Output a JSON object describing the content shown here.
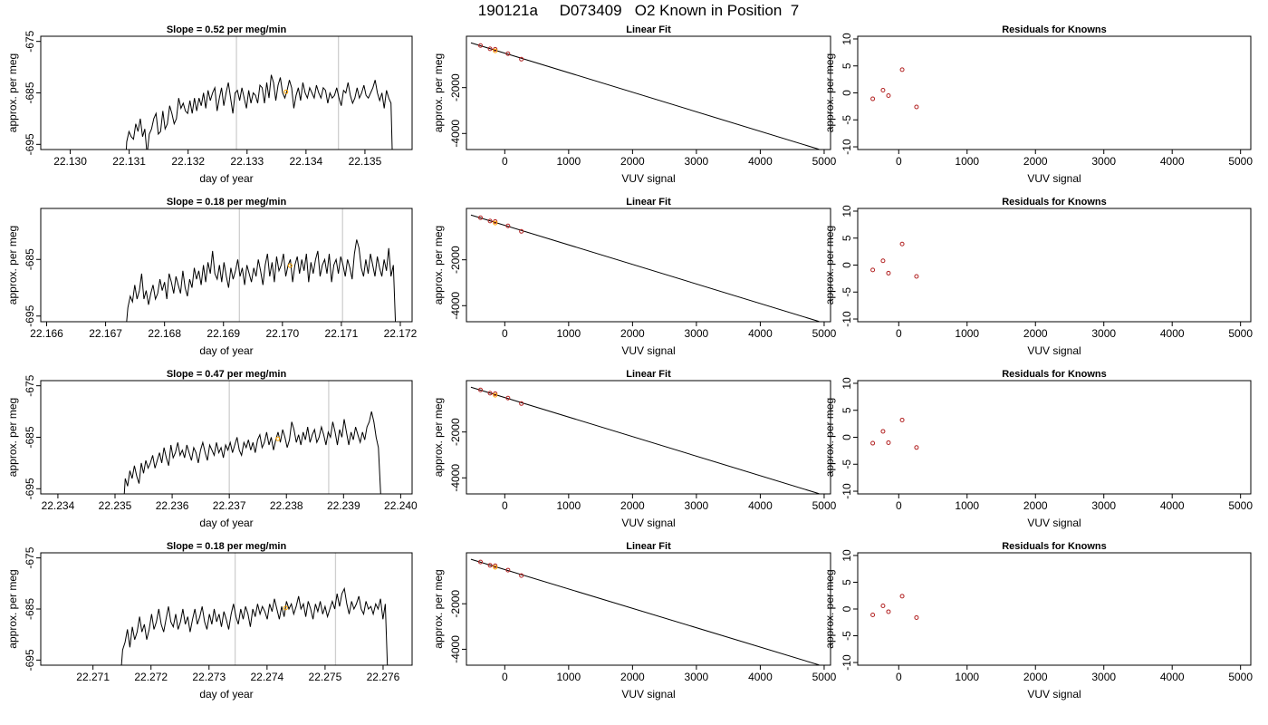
{
  "title": "190121a     D073409   O2 Known in Position  7",
  "colors": {
    "trace": "#000000",
    "guide_lines": "#cfcfcf",
    "known_points": "#b22222",
    "sample_point": "#ffa500",
    "fit_line": "#000000"
  },
  "chart_data": [
    {
      "type": "line",
      "title": "Slope =  0.52  per meg/min",
      "xlabel": "day of year",
      "ylabel": "approx. per meg",
      "xlim": [
        22.1295,
        22.1358
      ],
      "ylim": [
        -696,
        -674
      ],
      "xticks": [
        "22.130",
        "22.131",
        "22.132",
        "22.133",
        "22.134",
        "22.135"
      ],
      "yticks": [
        "-675",
        "-685",
        "-695"
      ],
      "vlines": [
        22.13282,
        22.13455
      ],
      "sample_point": {
        "x": 22.13366,
        "y": -684.8
      },
      "series": [
        {
          "x_start": 22.13092,
          "x_end": 22.13548,
          "y": [
            -703,
            -694.5,
            -692.5,
            -693.5,
            -694,
            -691,
            -692.5,
            -690,
            -693.5,
            -692,
            -697,
            -693,
            -692,
            -690,
            -689,
            -693,
            -692.5,
            -688.5,
            -692,
            -691,
            -687.5,
            -689,
            -691,
            -690,
            -686,
            -688,
            -687,
            -688.5,
            -689,
            -686.5,
            -689,
            -686,
            -688.5,
            -686,
            -687.5,
            -685,
            -688,
            -684.5,
            -686.5,
            -685,
            -684,
            -688.5,
            -686,
            -684,
            -687.5,
            -685,
            -683,
            -686,
            -689,
            -685,
            -684.5,
            -686.5,
            -684,
            -686,
            -688,
            -684.5,
            -687,
            -685,
            -685.5,
            -687,
            -683.5,
            -684,
            -687,
            -683,
            -686,
            -681.5,
            -683,
            -686.5,
            -683.5,
            -682,
            -685,
            -686,
            -684.5,
            -682.5,
            -684,
            -688,
            -685.5,
            -684,
            -686.5,
            -683,
            -685,
            -686,
            -684,
            -685,
            -686,
            -683.5,
            -685,
            -686,
            -684,
            -684.5,
            -687,
            -685,
            -686,
            -685.5,
            -684,
            -686,
            -687.5,
            -684.5,
            -685,
            -683,
            -685.5,
            -687,
            -686,
            -684,
            -686,
            -685,
            -683.5,
            -685.5,
            -686,
            -685,
            -684,
            -682.5,
            -685,
            -686.5,
            -685,
            -688,
            -684.5,
            -686,
            -687,
            -704
          ]
        }
      ]
    },
    {
      "type": "scatter",
      "title": "Linear Fit",
      "xlabel": "VUV signal",
      "ylabel": "approx. per meg",
      "xlim": [
        -600,
        5100
      ],
      "ylim": [
        -4700,
        240
      ],
      "xticks": [
        0,
        1000,
        2000,
        3000,
        4000,
        5000
      ],
      "yticks": [
        -2000,
        -4000
      ],
      "fit_line": {
        "x": [
          -530,
          4920
        ],
        "y": [
          -45,
          -4690
        ]
      },
      "known_points": {
        "x": [
          -380,
          -230,
          -150,
          50,
          260
        ],
        "y": [
          -165,
          -310,
          -330,
          -520,
          -760
        ]
      },
      "sample_point": {
        "x": -150,
        "y": -395
      }
    },
    {
      "type": "scatter",
      "title": "Residuals for Knowns",
      "xlabel": "VUV signal",
      "ylabel": "approx. per meg",
      "xlim": [
        -600,
        5150
      ],
      "ylim": [
        -10.5,
        10.5
      ],
      "xticks": [
        0,
        1000,
        2000,
        3000,
        4000,
        5000
      ],
      "yticks": [
        -10,
        -5,
        0,
        5,
        10
      ],
      "known_points": {
        "x": [
          -380,
          -230,
          -150,
          50,
          260
        ],
        "y": [
          -1.1,
          0.5,
          -0.5,
          4.3,
          -2.6
        ]
      }
    },
    {
      "type": "line",
      "title": "Slope =  0.18  per meg/min",
      "xlabel": "day of year",
      "ylabel": "approx. per meg",
      "xlim": [
        22.1659,
        22.1722
      ],
      "ylim": [
        -696,
        -676
      ],
      "xticks": [
        "22.166",
        "22.167",
        "22.168",
        "22.169",
        "22.170",
        "22.171",
        "22.172"
      ],
      "yticks": [
        "-685",
        "-695"
      ],
      "vlines": [
        22.16927,
        22.17102
      ],
      "sample_point": {
        "x": 22.17013,
        "y": -686.1
      },
      "series": [
        {
          "x_start": 22.16734,
          "x_end": 22.17192,
          "y": [
            -698,
            -693.5,
            -691.5,
            -692.5,
            -689.5,
            -692,
            -690.5,
            -687.5,
            -692,
            -690.5,
            -693,
            -691,
            -689.5,
            -692,
            -691,
            -688.5,
            -690.5,
            -689,
            -692,
            -687.5,
            -689,
            -691,
            -688,
            -689.5,
            -691,
            -687,
            -690,
            -691.5,
            -688.5,
            -690,
            -686.5,
            -688.5,
            -687,
            -689.5,
            -686,
            -689,
            -685.5,
            -687.5,
            -683.5,
            -687.5,
            -688.5,
            -686,
            -689,
            -685.5,
            -688,
            -690,
            -686.5,
            -688.5,
            -687,
            -685,
            -688,
            -686.5,
            -689.5,
            -686,
            -687.5,
            -689,
            -686.5,
            -688,
            -685,
            -687,
            -689.5,
            -686,
            -684,
            -688,
            -685.5,
            -689,
            -684.5,
            -687,
            -686,
            -684,
            -688,
            -686,
            -685,
            -689,
            -686,
            -684.5,
            -687.5,
            -685,
            -687,
            -684,
            -689,
            -685.5,
            -687.5,
            -685,
            -683.5,
            -688,
            -686,
            -685,
            -687.5,
            -684,
            -689,
            -686,
            -685,
            -687.5,
            -684.5,
            -686,
            -688,
            -685,
            -686.5,
            -688.5,
            -684,
            -681.5,
            -683,
            -686.5,
            -688,
            -685,
            -687.5,
            -684,
            -686,
            -688,
            -684.5,
            -686.5,
            -688,
            -685,
            -687,
            -683,
            -688,
            -686,
            -697
          ]
        }
      ]
    },
    {
      "type": "scatter",
      "title": "Linear Fit",
      "xlabel": "VUV signal",
      "ylabel": "approx. per meg",
      "xlim": [
        -600,
        5100
      ],
      "ylim": [
        -4700,
        240
      ],
      "xticks": [
        0,
        1000,
        2000,
        3000,
        4000,
        5000
      ],
      "yticks": [
        -2000,
        -4000
      ],
      "fit_line": {
        "x": [
          -530,
          4920
        ],
        "y": [
          -45,
          -4690
        ]
      },
      "known_points": {
        "x": [
          -380,
          -230,
          -150,
          50,
          260
        ],
        "y": [
          -165,
          -310,
          -330,
          -520,
          -760
        ]
      },
      "sample_point": {
        "x": -150,
        "y": -395
      }
    },
    {
      "type": "scatter",
      "title": "Residuals for Knowns",
      "xlabel": "VUV signal",
      "ylabel": "approx. per meg",
      "xlim": [
        -600,
        5150
      ],
      "ylim": [
        -10.5,
        10.5
      ],
      "xticks": [
        0,
        1000,
        2000,
        3000,
        4000,
        5000
      ],
      "yticks": [
        -10,
        -5,
        0,
        5,
        10
      ],
      "known_points": {
        "x": [
          -380,
          -230,
          -150,
          50,
          260
        ],
        "y": [
          -0.9,
          0.8,
          -1.5,
          3.9,
          -2.1
        ]
      }
    },
    {
      "type": "line",
      "title": "Slope =  0.47  per meg/min",
      "xlabel": "day of year",
      "ylabel": "approx. per meg",
      "xlim": [
        22.2337,
        22.2402
      ],
      "ylim": [
        -696,
        -674
      ],
      "xticks": [
        "22.234",
        "22.235",
        "22.236",
        "22.237",
        "22.238",
        "22.239",
        "22.240"
      ],
      "yticks": [
        "-675",
        "-685",
        "-695"
      ],
      "vlines": [
        22.237,
        22.23874
      ],
      "sample_point": {
        "x": 22.23785,
        "y": -685.3
      },
      "series": [
        {
          "x_start": 22.23514,
          "x_end": 22.23965,
          "y": [
            -700,
            -693,
            -694.5,
            -691.5,
            -693,
            -690.5,
            -692.5,
            -694,
            -690,
            -692,
            -689.5,
            -691,
            -690,
            -688.5,
            -691,
            -689.5,
            -688,
            -690,
            -687,
            -689,
            -690.5,
            -686.5,
            -689,
            -688,
            -686,
            -688.5,
            -687.5,
            -689,
            -686.5,
            -688,
            -689.5,
            -687,
            -688,
            -690,
            -687.5,
            -686,
            -688,
            -689.5,
            -686.5,
            -687.5,
            -688.5,
            -686,
            -688,
            -687,
            -689,
            -686.5,
            -687.5,
            -686,
            -688,
            -686.5,
            -685,
            -687.5,
            -688.5,
            -686,
            -687,
            -685.5,
            -687.5,
            -686,
            -688,
            -685.5,
            -684.5,
            -687,
            -686,
            -684,
            -686.5,
            -685,
            -687.5,
            -685.5,
            -684,
            -686,
            -683.5,
            -685,
            -687,
            -685.5,
            -682,
            -683.5,
            -686,
            -684.5,
            -686.5,
            -684,
            -685.5,
            -683,
            -686,
            -684.5,
            -683.5,
            -686,
            -685,
            -683,
            -684.5,
            -686.5,
            -684,
            -685,
            -682,
            -684,
            -686.5,
            -683.5,
            -685,
            -681.5,
            -684,
            -686.5,
            -684,
            -685.5,
            -683,
            -684.5,
            -686,
            -684,
            -685.5,
            -683,
            -682,
            -680,
            -682,
            -685,
            -687,
            -696
          ]
        }
      ]
    },
    {
      "type": "scatter",
      "title": "Linear Fit",
      "xlabel": "VUV signal",
      "ylabel": "approx. per meg",
      "xlim": [
        -600,
        5100
      ],
      "ylim": [
        -4700,
        240
      ],
      "xticks": [
        0,
        1000,
        2000,
        3000,
        4000,
        5000
      ],
      "yticks": [
        -2000,
        -4000
      ],
      "fit_line": {
        "x": [
          -530,
          4920
        ],
        "y": [
          -45,
          -4690
        ]
      },
      "known_points": {
        "x": [
          -380,
          -230,
          -150,
          50,
          260
        ],
        "y": [
          -165,
          -310,
          -330,
          -520,
          -760
        ]
      },
      "sample_point": {
        "x": -150,
        "y": -395
      }
    },
    {
      "type": "scatter",
      "title": "Residuals for Knowns",
      "xlabel": "VUV signal",
      "ylabel": "approx. per meg",
      "xlim": [
        -600,
        5150
      ],
      "ylim": [
        -10.5,
        10.5
      ],
      "xticks": [
        0,
        1000,
        2000,
        3000,
        4000,
        5000
      ],
      "yticks": [
        -10,
        -5,
        0,
        5,
        10
      ],
      "known_points": {
        "x": [
          -380,
          -230,
          -150,
          50,
          260
        ],
        "y": [
          -1.1,
          1.1,
          -1.0,
          3.2,
          -1.9
        ]
      }
    },
    {
      "type": "line",
      "title": "Slope =  0.18  per meg/min",
      "xlabel": "day of year",
      "ylabel": "approx. per meg",
      "xlim": [
        22.2701,
        22.2765
      ],
      "ylim": [
        -696,
        -674
      ],
      "xticks": [
        "22.271",
        "22.272",
        "22.273",
        "22.274",
        "22.275",
        "22.276"
      ],
      "yticks": [
        "-675",
        "-685",
        "-695"
      ],
      "vlines": [
        22.27345,
        22.27518
      ],
      "sample_point": {
        "x": 22.27432,
        "y": -684.8
      },
      "series": [
        {
          "x_start": 22.27147,
          "x_end": 22.27608,
          "y": [
            -699,
            -693,
            -691.5,
            -689,
            -692.5,
            -688.5,
            -691,
            -689.5,
            -686.5,
            -689.5,
            -688,
            -691,
            -689,
            -686,
            -689,
            -687.5,
            -685,
            -688,
            -689.5,
            -687,
            -684.5,
            -687.5,
            -688.5,
            -686,
            -689,
            -687.5,
            -685,
            -688,
            -686.5,
            -689.5,
            -687,
            -685,
            -688,
            -686.5,
            -684.5,
            -687.5,
            -689,
            -686,
            -688,
            -685,
            -687.5,
            -686,
            -688.5,
            -685.5,
            -687,
            -689,
            -686,
            -684,
            -686.5,
            -688,
            -685,
            -687,
            -684.5,
            -686,
            -688.5,
            -685,
            -686.5,
            -684,
            -686,
            -684.5,
            -685.5,
            -687,
            -684,
            -685.5,
            -683,
            -685,
            -687,
            -684.5,
            -686.5,
            -683.5,
            -685,
            -684,
            -686,
            -684.5,
            -682.5,
            -685,
            -684,
            -686.5,
            -683.5,
            -685,
            -687,
            -684,
            -685.5,
            -683.5,
            -686,
            -684.5,
            -686.5,
            -685,
            -683.5,
            -685,
            -682,
            -684.5,
            -682,
            -681,
            -684,
            -686,
            -683.5,
            -685,
            -684,
            -682.5,
            -685,
            -686,
            -683.5,
            -685,
            -684.5,
            -686,
            -684,
            -685,
            -683,
            -687,
            -684,
            -698
          ]
        }
      ]
    },
    {
      "type": "scatter",
      "title": "Linear Fit",
      "xlabel": "VUV signal",
      "ylabel": "approx. per meg",
      "xlim": [
        -600,
        5100
      ],
      "ylim": [
        -4700,
        240
      ],
      "xticks": [
        0,
        1000,
        2000,
        3000,
        4000,
        5000
      ],
      "yticks": [
        -2000,
        -4000
      ],
      "fit_line": {
        "x": [
          -530,
          4920
        ],
        "y": [
          -45,
          -4690
        ]
      },
      "known_points": {
        "x": [
          -380,
          -230,
          -150,
          50,
          260
        ],
        "y": [
          -165,
          -310,
          -330,
          -520,
          -760
        ]
      },
      "sample_point": {
        "x": -150,
        "y": -395
      }
    },
    {
      "type": "scatter",
      "title": "Residuals for Knowns",
      "xlabel": "VUV signal",
      "ylabel": "approx. per meg",
      "xlim": [
        -600,
        5150
      ],
      "ylim": [
        -10.5,
        10.5
      ],
      "xticks": [
        0,
        1000,
        2000,
        3000,
        4000,
        5000
      ],
      "yticks": [
        -10,
        -5,
        0,
        5,
        10
      ],
      "known_points": {
        "x": [
          -380,
          -230,
          -150,
          50,
          260
        ],
        "y": [
          -1.1,
          0.6,
          -0.5,
          2.4,
          -1.6
        ]
      }
    }
  ]
}
